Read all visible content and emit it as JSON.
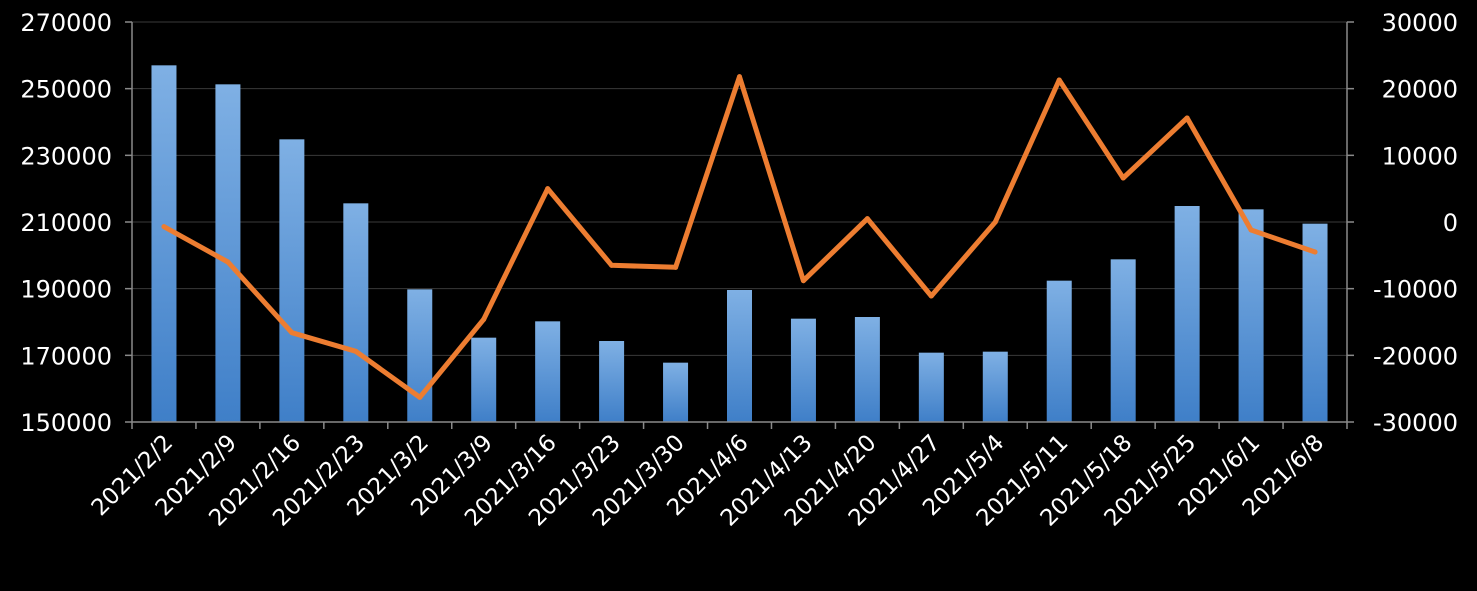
{
  "chart_data": {
    "type": "bar+line",
    "title": "",
    "xlabel": "",
    "ylabel": "",
    "categories": [
      "2021/2/2",
      "2021/2/9",
      "2021/2/16",
      "2021/2/23",
      "2021/3/2",
      "2021/3/9",
      "2021/3/16",
      "2021/3/23",
      "2021/3/30",
      "2021/4/6",
      "2021/4/13",
      "2021/4/20",
      "2021/4/27",
      "2021/5/4",
      "2021/5/11",
      "2021/5/18",
      "2021/5/25",
      "2021/6/1",
      "2021/6/8"
    ],
    "y_left": {
      "ylim": [
        150000,
        270000
      ],
      "ticks": [
        "150000",
        "170000",
        "190000",
        "210000",
        "230000",
        "250000",
        "270000"
      ]
    },
    "y_right": {
      "ylim": [
        -30000,
        30000
      ],
      "ticks": [
        "-30000",
        "-20000",
        "-10000",
        "0",
        "10000",
        "20000",
        "30000"
      ]
    },
    "grid": true,
    "legend": "none",
    "series": [
      {
        "type": "bar",
        "axis": "left",
        "color": "#5b9bd5",
        "values": [
          257000,
          251300,
          234800,
          215600,
          189800,
          175300,
          180200,
          174300,
          167800,
          189600,
          181000,
          181500,
          170800,
          171100,
          192400,
          198800,
          214800,
          213800,
          209500
        ]
      },
      {
        "type": "line",
        "axis": "right",
        "color": "#ed7d31",
        "values": [
          -700,
          -6000,
          -16600,
          -19400,
          -26300,
          -14600,
          5000,
          -6500,
          -6800,
          21800,
          -8800,
          500,
          -11100,
          0,
          21300,
          6600,
          15600,
          -1200,
          -4500
        ]
      }
    ]
  }
}
